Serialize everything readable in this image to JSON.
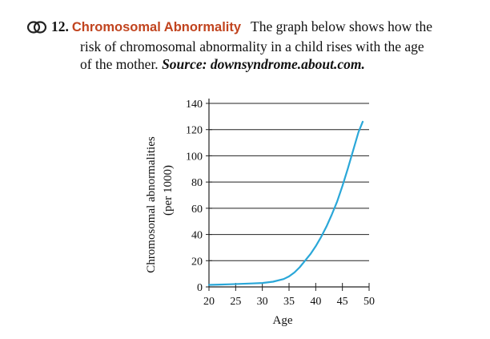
{
  "problem": {
    "number": "12.",
    "title": "Chromosomal Abnormality",
    "line1": "The graph below shows how the",
    "line2": "risk of chromosomal abnormality in a child rises with the age",
    "line3_pre": "of the mother.",
    "source_label": "Source:",
    "source_text": "downsyndrome.about.com."
  },
  "icon": {
    "name": "link-icon"
  },
  "colors": {
    "curve": "#2aa7d8",
    "title": "#c1441f"
  },
  "chart_data": {
    "type": "line",
    "xlabel": "Age",
    "ylabel": "Chromosomal abnormalities",
    "ylabel2": "(per 1000)",
    "xlim": [
      20,
      50
    ],
    "ylim": [
      0,
      140
    ],
    "x_ticks": [
      "20",
      "25",
      "30",
      "35",
      "40",
      "45",
      "50"
    ],
    "y_ticks": [
      "0",
      "20",
      "40",
      "60",
      "80",
      "100",
      "120",
      "140"
    ],
    "grid": "horizontal",
    "series": [
      {
        "x": [
          20,
          22,
          24,
          26,
          28,
          30,
          32,
          34,
          35,
          36,
          37,
          38,
          39,
          40,
          41,
          42,
          43,
          44,
          45,
          46,
          47,
          48,
          48.8
        ],
        "y": [
          1.5,
          1.8,
          2,
          2.3,
          2.6,
          3,
          4,
          6,
          8,
          11,
          15,
          20,
          25,
          31,
          38,
          46,
          55,
          65,
          77,
          90,
          104,
          118,
          126
        ]
      }
    ]
  }
}
